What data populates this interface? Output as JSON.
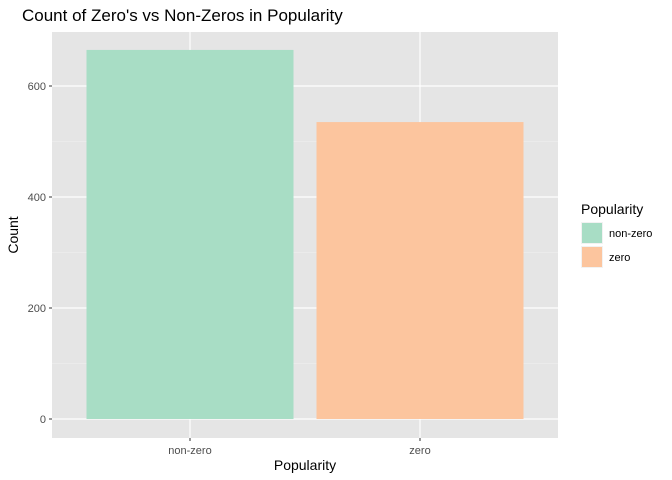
{
  "chart_data": {
    "type": "bar",
    "title": "Count of Zero's vs Non-Zeros in Popularity",
    "xlabel": "Popularity",
    "ylabel": "Count",
    "categories": [
      "non-zero",
      "zero"
    ],
    "values": [
      665,
      535
    ],
    "ylim": [
      0,
      700
    ],
    "yticks": [
      0,
      200,
      400,
      600
    ],
    "ytick_labels": [
      "0",
      "200",
      "400",
      "600"
    ],
    "grid": true,
    "legend": {
      "title": "Popularity",
      "position": "right",
      "entries": [
        {
          "label": "non-zero",
          "color": "#a8ddc5"
        },
        {
          "label": "zero",
          "color": "#fcc59e"
        }
      ]
    },
    "colors": [
      "#a8ddc5",
      "#fcc59e"
    ],
    "panel_background": "#e5e5e5"
  }
}
